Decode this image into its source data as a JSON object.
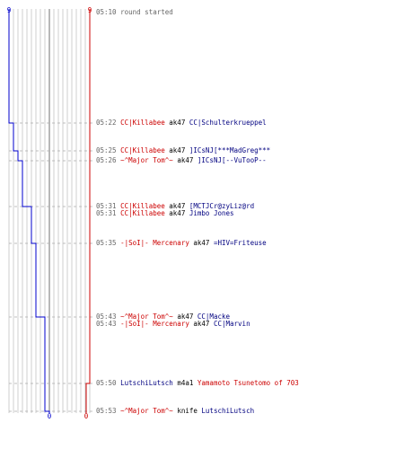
{
  "chart_data": {
    "type": "line",
    "title": "",
    "xlabel": "",
    "ylabel": "",
    "grid": true,
    "top_labels": {
      "blue": "9",
      "red": "9"
    },
    "bottom_labels": {
      "blue": "0",
      "red": "0"
    },
    "xlim": [
      0,
      9
    ],
    "colors": {
      "blue": "#0000cc",
      "red": "#cc0000",
      "grid": "#bbbbbb",
      "center_line": "#888888",
      "row_dash": "#aaaaaa",
      "time_text": "#666666",
      "red_team_text": "#cc0000",
      "blue_team_text": "#000080"
    },
    "series": [
      {
        "team": "blue",
        "step_points": [
          {
            "time": "05:10",
            "value": 9
          },
          {
            "time": "05:22",
            "value": 8
          },
          {
            "time": "05:25",
            "value": 7
          },
          {
            "time": "05:26",
            "value": 6
          },
          {
            "time": "05:31",
            "value": 5
          },
          {
            "time": "05:31",
            "value": 4
          },
          {
            "time": "05:35",
            "value": 3
          },
          {
            "time": "05:43",
            "value": 2
          },
          {
            "time": "05:43",
            "value": 1
          },
          {
            "time": "05:53",
            "value": 0
          }
        ]
      },
      {
        "team": "red",
        "step_points": [
          {
            "time": "05:10",
            "value": 9
          },
          {
            "time": "05:50",
            "value": 8
          },
          {
            "time": "05:53",
            "value": 8
          }
        ]
      }
    ],
    "events": [
      {
        "time": "05:10",
        "type": "info",
        "text": "round started"
      },
      {
        "time": "05:22",
        "type": "kill",
        "killer": "CC|Killabee",
        "killer_team": "red",
        "weapon": "ak47",
        "victim": "CC|Schulterkrueppel",
        "victim_team": "blue"
      },
      {
        "time": "05:25",
        "type": "kill",
        "killer": "CC|Killabee",
        "killer_team": "red",
        "weapon": "ak47",
        "victim": "]ICsNJ[***MadGreg***",
        "victim_team": "blue"
      },
      {
        "time": "05:26",
        "type": "kill",
        "killer": "~^Major Tom^~",
        "killer_team": "red",
        "weapon": "ak47",
        "victim": "]ICsNJ[--VuTooP--",
        "victim_team": "blue"
      },
      {
        "time": "05:31",
        "type": "kill",
        "killer": "CC|Killabee",
        "killer_team": "red",
        "weapon": "ak47",
        "victim": "[MCTJCr@zyLiz@rd",
        "victim_team": "blue"
      },
      {
        "time": "05:31",
        "type": "kill",
        "killer": "CC|Killabee",
        "killer_team": "red",
        "weapon": "ak47",
        "victim": "Jimbo Jones",
        "victim_team": "blue"
      },
      {
        "time": "05:35",
        "type": "kill",
        "killer": "-|SoI|- Mercenary",
        "killer_team": "red",
        "weapon": "ak47",
        "victim": "=HIV=Friteuse",
        "victim_team": "blue"
      },
      {
        "time": "05:43",
        "type": "kill",
        "killer": "~^Major Tom^~",
        "killer_team": "red",
        "weapon": "ak47",
        "victim": "CC|Macke",
        "victim_team": "blue"
      },
      {
        "time": "05:43",
        "type": "kill",
        "killer": "-|SoI|- Mercenary",
        "killer_team": "red",
        "weapon": "ak47",
        "victim": "CC|Marvin",
        "victim_team": "blue"
      },
      {
        "time": "05:50",
        "type": "kill",
        "killer": "LutschiLutsch",
        "killer_team": "blue",
        "weapon": "m4a1",
        "victim": "Yamamoto Tsunetomo of 703",
        "victim_team": "red"
      },
      {
        "time": "05:53",
        "type": "kill",
        "killer": "~^Major Tom^~",
        "killer_team": "red",
        "weapon": "knife",
        "victim": "LutschiLutsch",
        "victim_team": "blue"
      }
    ]
  }
}
